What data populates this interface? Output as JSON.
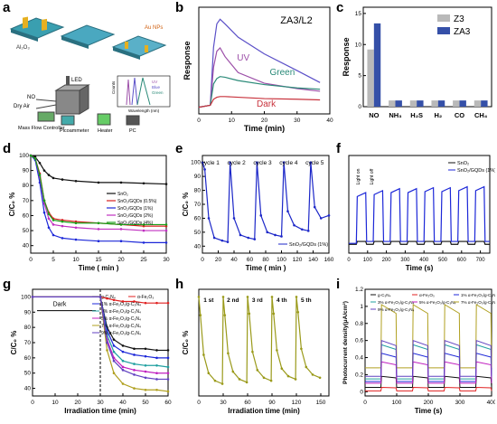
{
  "panel_labels": [
    "a",
    "b",
    "c",
    "d",
    "e",
    "f",
    "g",
    "h",
    "i"
  ],
  "panel_a": {
    "substrate_label": "Al₂O₃",
    "np_label": "Au NPs",
    "led_label": "LED",
    "gas_labels": [
      "NO",
      "Dry Air"
    ],
    "box_labels": [
      "Mass Flow Controller",
      "Picoammeter",
      "Heater",
      "PC"
    ],
    "inset": {
      "xlabel": "Wavelength (nm)",
      "ylabel": "Counts",
      "legend": [
        "UV",
        "Blue",
        "Green"
      ]
    }
  },
  "chart_data": [
    {
      "panel": "b",
      "type": "line",
      "title": "ZA3/L2",
      "xlabel": "Time (min)",
      "ylabel": "Response",
      "xlim": [
        0,
        40
      ],
      "xticks": [
        0,
        10,
        20,
        30,
        40
      ],
      "yticks": [],
      "series": [
        {
          "name": "Blue",
          "color": "#5b50c8",
          "x": [
            0,
            3.5,
            4.5,
            5.5,
            6.5,
            8,
            12,
            20,
            30,
            37
          ],
          "y": [
            0,
            0.3,
            9,
            12.5,
            13.2,
            12.5,
            10.5,
            8,
            5.5,
            3.7
          ]
        },
        {
          "name": "UV",
          "color": "#9c4fa8",
          "x": [
            0,
            3.5,
            4.5,
            5.5,
            6.5,
            8,
            12,
            20,
            30,
            37
          ],
          "y": [
            0,
            0.3,
            6,
            8.4,
            8.9,
            7.6,
            5.2,
            3.6,
            2.8,
            2.4
          ]
        },
        {
          "name": "Green",
          "color": "#2a8a78",
          "x": [
            0,
            3.5,
            4.5,
            5.5,
            6.5,
            8,
            12,
            20,
            30,
            37
          ],
          "y": [
            0,
            0.3,
            3.5,
            4.3,
            4.6,
            4.5,
            4.0,
            3.4,
            2.9,
            2.7
          ]
        },
        {
          "name": "Dark",
          "color": "#c8323c",
          "x": [
            0,
            3.5,
            4.5,
            5.5,
            6.5,
            8,
            12,
            20,
            30,
            37
          ],
          "y": [
            0,
            0.3,
            1.2,
            1.5,
            1.6,
            1.6,
            1.5,
            1.3,
            1.2,
            1.1
          ]
        }
      ]
    },
    {
      "panel": "c",
      "type": "bar",
      "xlabel": "",
      "ylabel": "Response",
      "categories": [
        "NO",
        "NH₃",
        "H₂S",
        "H₂",
        "CO",
        "CH₄"
      ],
      "ylim": [
        0,
        16
      ],
      "yticks": [
        0,
        5,
        10,
        15
      ],
      "legend_position": "top-right",
      "series": [
        {
          "name": "Z3",
          "color": "#b9b9b9",
          "values": [
            9.2,
            1.0,
            1.0,
            1.0,
            1.0,
            1.0
          ]
        },
        {
          "name": "ZA3",
          "color": "#3550a8",
          "values": [
            13.4,
            1.0,
            1.0,
            1.0,
            1.0,
            1.0
          ]
        }
      ]
    },
    {
      "panel": "d",
      "type": "line",
      "xlabel": "Time ( min )",
      "ylabel": "C/C₀ %",
      "xlim": [
        0,
        30
      ],
      "ylim": [
        35,
        100
      ],
      "xticks": [
        0,
        5,
        10,
        15,
        20,
        25,
        30
      ],
      "yticks": [
        40,
        50,
        60,
        70,
        80,
        90,
        100
      ],
      "legend_position": "middle-right",
      "series": [
        {
          "name": "SnO₂",
          "color": "#111111",
          "x": [
            0,
            1,
            2,
            3,
            4,
            5,
            7,
            10,
            15,
            20,
            25,
            30
          ],
          "y": [
            100,
            99,
            95,
            90,
            87,
            85,
            84,
            83,
            82,
            82,
            81.5,
            81
          ]
        },
        {
          "name": "SnO₂/GQDs (0.5%)",
          "color": "#d62020",
          "x": [
            0,
            1,
            2,
            3,
            4,
            5,
            7,
            10,
            15,
            20,
            25,
            30
          ],
          "y": [
            100,
            98,
            88,
            70,
            62,
            58,
            57,
            56,
            55,
            54,
            53,
            53
          ]
        },
        {
          "name": "SnO₂/GQDs (1%)",
          "color": "#1c27d8",
          "x": [
            0,
            1,
            2,
            3,
            4,
            5,
            7,
            10,
            15,
            20,
            25,
            30
          ],
          "y": [
            100,
            97,
            82,
            62,
            52,
            47,
            45,
            44,
            43,
            43,
            42,
            42
          ]
        },
        {
          "name": "SnO₂/GQDs (2%)",
          "color": "#c030c0",
          "x": [
            0,
            1,
            2,
            3,
            4,
            5,
            7,
            10,
            15,
            20,
            25,
            30
          ],
          "y": [
            100,
            98,
            86,
            68,
            58,
            54,
            53,
            52,
            51,
            51,
            50,
            50
          ]
        },
        {
          "name": "SnO₂/GQDs (4%)",
          "color": "#1aa01a",
          "x": [
            0,
            1,
            2,
            3,
            4,
            5,
            7,
            10,
            15,
            20,
            25,
            30
          ],
          "y": [
            100,
            98,
            87,
            70,
            61,
            57,
            56,
            55,
            55,
            54,
            54,
            54
          ]
        }
      ]
    },
    {
      "panel": "e",
      "type": "line",
      "xlabel": "Time ( min )",
      "ylabel": "C/C₀ %",
      "xlim": [
        0,
        160
      ],
      "ylim": [
        35,
        105
      ],
      "xticks": [
        0,
        20,
        40,
        60,
        80,
        100,
        120,
        140,
        160
      ],
      "yticks": [
        40,
        50,
        60,
        70,
        80,
        90,
        100
      ],
      "annotations": [
        "cycle 1",
        "cycle 2",
        "cycle 3",
        "cycle 4",
        "cycle 5"
      ],
      "legend_position": "bottom-right",
      "series": [
        {
          "name": "SnO₂/GQDs (1%)",
          "color": "#1c27c8",
          "x": [
            0,
            3,
            8,
            15,
            25,
            32,
            35,
            40,
            48,
            58,
            66,
            69,
            74,
            82,
            92,
            100,
            103,
            108,
            116,
            126,
            134,
            137,
            142,
            150,
            160
          ],
          "y": [
            100,
            95,
            60,
            46,
            44,
            43,
            100,
            60,
            48,
            46,
            45,
            100,
            62,
            50,
            48,
            47,
            100,
            65,
            55,
            52,
            51,
            100,
            68,
            60,
            62
          ]
        }
      ]
    },
    {
      "panel": "f",
      "type": "line",
      "xlabel": "Time (s)",
      "ylabel": "",
      "xlim": [
        0,
        750
      ],
      "xticks": [
        0,
        100,
        200,
        300,
        400,
        500,
        600,
        700
      ],
      "yticks": [],
      "annotations": [
        "Light on",
        "Light off"
      ],
      "legend_position": "top-right",
      "series": [
        {
          "name": "SnO₂",
          "color": "#111111",
          "x": [
            0,
            40,
            45,
            90,
            95,
            130,
            135,
            180,
            185,
            220,
            225,
            270,
            275,
            310,
            315,
            360,
            365,
            400,
            405,
            450,
            455,
            490,
            495,
            540,
            545,
            580,
            585,
            630,
            635,
            670,
            675,
            720,
            725,
            750
          ],
          "y": [
            9,
            9,
            12,
            12,
            9,
            9,
            12,
            12,
            9,
            9,
            12,
            12,
            9,
            9,
            12,
            12,
            9,
            9,
            12,
            12,
            9,
            9,
            12,
            12,
            9,
            9,
            12,
            12,
            9,
            9,
            12,
            12,
            9,
            9
          ]
        },
        {
          "name": "SnO₂/GQDs (1%)",
          "color": "#1c27d8",
          "x": [
            0,
            40,
            45,
            90,
            95,
            130,
            135,
            180,
            185,
            220,
            225,
            270,
            275,
            310,
            315,
            360,
            365,
            400,
            405,
            450,
            455,
            490,
            495,
            540,
            545,
            580,
            585,
            630,
            635,
            670,
            675,
            720,
            725,
            750
          ],
          "y": [
            10,
            10,
            58,
            62,
            12,
            12,
            60,
            64,
            12,
            12,
            62,
            66,
            12,
            12,
            62,
            66,
            12,
            12,
            63,
            67,
            12,
            12,
            63,
            67,
            12,
            12,
            64,
            68,
            12,
            12,
            64,
            68,
            12,
            12
          ]
        }
      ]
    },
    {
      "panel": "g",
      "type": "line",
      "xlabel": "Irradiation time (min)",
      "ylabel": "C/C₀ %",
      "xlim": [
        0,
        60
      ],
      "ylim": [
        35,
        105
      ],
      "xticks": [
        0,
        10,
        20,
        30,
        40,
        50,
        60
      ],
      "yticks": [
        40,
        50,
        60,
        70,
        80,
        90,
        100
      ],
      "annotations": [
        "Dark"
      ],
      "legend_position": "top-right",
      "series": [
        {
          "name": "g-C₃N₄",
          "color": "#111111",
          "x": [
            0,
            30,
            33,
            36,
            40,
            45,
            50,
            55,
            60
          ],
          "y": [
            100,
            100,
            80,
            72,
            68,
            66,
            66,
            65,
            65
          ]
        },
        {
          "name": "α-Fe₂O₃",
          "color": "#e02020",
          "x": [
            0,
            30,
            33,
            36,
            40,
            45,
            50,
            55,
            60
          ],
          "y": [
            100,
            100,
            99,
            98,
            97,
            97,
            96,
            96,
            96
          ]
        },
        {
          "name": "1% α-Fe₂O₃/g-C₃N₄",
          "color": "#1c27d8",
          "x": [
            0,
            30,
            33,
            36,
            40,
            45,
            50,
            55,
            60
          ],
          "y": [
            100,
            100,
            78,
            68,
            64,
            62,
            61,
            60,
            60
          ]
        },
        {
          "name": "3% α-Fe₂O₃/g-C₃N₄",
          "color": "#20a0a0",
          "x": [
            0,
            30,
            33,
            36,
            40,
            45,
            50,
            55,
            60
          ],
          "y": [
            100,
            100,
            75,
            64,
            58,
            56,
            55,
            55,
            54
          ]
        },
        {
          "name": "5% α-Fe₂O₃/g-C₃N₄",
          "color": "#c020c0",
          "x": [
            0,
            30,
            33,
            36,
            40,
            45,
            50,
            55,
            60
          ],
          "y": [
            100,
            100,
            72,
            60,
            54,
            52,
            51,
            50,
            50
          ]
        },
        {
          "name": "7% α-Fe₂O₃/g-C₃N₄",
          "color": "#b0a020",
          "x": [
            0,
            30,
            33,
            36,
            40,
            45,
            50,
            55,
            60
          ],
          "y": [
            100,
            100,
            65,
            50,
            43,
            40,
            39,
            39,
            38
          ]
        },
        {
          "name": "9% α-Fe₂O₃/g-C₃N₄",
          "color": "#6040c0",
          "x": [
            0,
            30,
            33,
            36,
            40,
            45,
            50,
            55,
            60
          ],
          "y": [
            100,
            100,
            70,
            58,
            52,
            49,
            47,
            46,
            46
          ]
        }
      ]
    },
    {
      "panel": "h",
      "type": "line",
      "xlabel": "Irradiation time (min)",
      "ylabel": "C/C₀ %",
      "xlim": [
        0,
        160
      ],
      "ylim": [
        35,
        105
      ],
      "xticks": [
        0,
        30,
        60,
        90,
        120,
        150
      ],
      "yticks": [],
      "annotations": [
        "1 st",
        "2 nd",
        "3 rd",
        "4 th",
        "5 th"
      ],
      "series": [
        {
          "name": "",
          "color": "#9a9a1a",
          "x": [
            0,
            2,
            6,
            12,
            20,
            29,
            30,
            32,
            36,
            42,
            50,
            59,
            60,
            62,
            66,
            72,
            80,
            89,
            90,
            92,
            96,
            102,
            110,
            119,
            120,
            122,
            126,
            132,
            140,
            149
          ],
          "y": [
            100,
            88,
            62,
            50,
            45,
            43,
            100,
            88,
            63,
            51,
            46,
            44,
            100,
            89,
            64,
            52,
            47,
            45,
            100,
            89,
            65,
            53,
            48,
            46,
            100,
            90,
            66,
            54,
            49,
            47
          ]
        }
      ]
    },
    {
      "panel": "i",
      "type": "line",
      "xlabel": "Time (s)",
      "ylabel": "Photocurrent density(μA/cm²)",
      "xlim": [
        0,
        400
      ],
      "ylim": [
        -0.05,
        1.2
      ],
      "xticks": [
        0,
        100,
        200,
        300,
        400
      ],
      "yticks": [
        0.0,
        0.2,
        0.4,
        0.6,
        0.8,
        1.0,
        1.2
      ],
      "legend_position": "top",
      "series": [
        {
          "name": "g-C₃N₄",
          "color": "#111111",
          "on": 0.18,
          "off": 0.05
        },
        {
          "name": "α-Fe₂O₃",
          "color": "#e02020",
          "on": 0.05,
          "off": 0.01
        },
        {
          "name": "1% α-Fe₂O₃/g-C₃N₄",
          "color": "#1c27d8",
          "on": 0.45,
          "off": 0.12
        },
        {
          "name": "3% α-Fe₂O₃/g-C₃N₄",
          "color": "#20a0a0",
          "on": 0.55,
          "off": 0.15
        },
        {
          "name": "5% α-Fe₂O₃/g-C₃N₄",
          "color": "#c020c0",
          "on": 0.35,
          "off": 0.1
        },
        {
          "name": "7% α-Fe₂O₃/g-C₃N₄",
          "color": "#b0a020",
          "on": 1.02,
          "off": 0.28
        },
        {
          "name": "9% α-Fe₂O₃/g-C₃N₄",
          "color": "#6040c0",
          "on": 0.6,
          "off": 0.18
        }
      ]
    }
  ]
}
